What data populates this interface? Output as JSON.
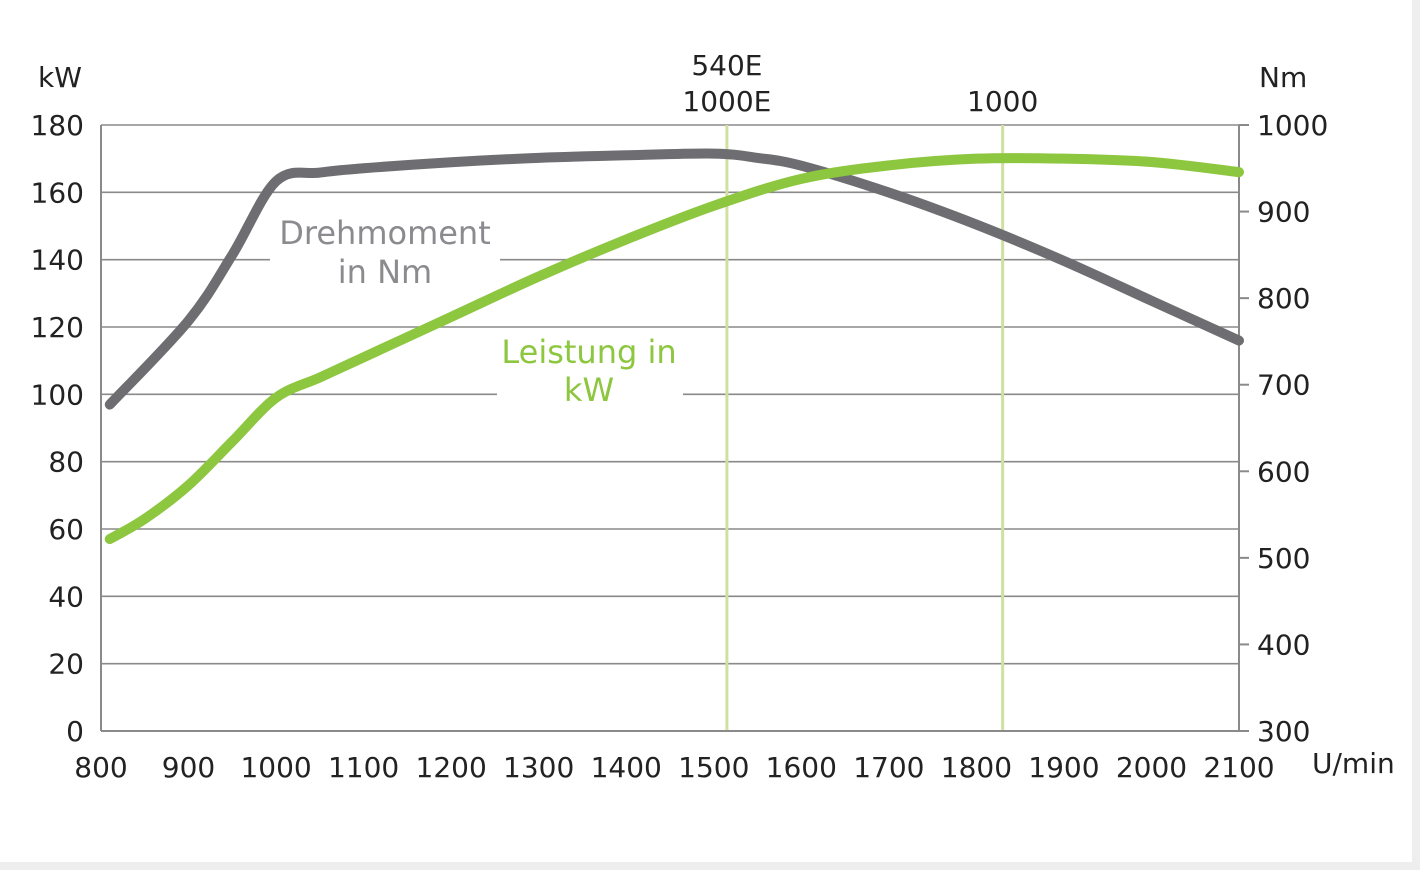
{
  "chart_data": {
    "type": "line",
    "x_axis": {
      "unit": "U/min",
      "min": 800,
      "max": 2100,
      "ticks": [
        800,
        900,
        1000,
        1100,
        1200,
        1300,
        1400,
        1500,
        1600,
        1700,
        1800,
        1900,
        2000,
        2100
      ]
    },
    "y_left": {
      "unit": "kW",
      "min": 0,
      "max": 180,
      "ticks": [
        0,
        20,
        40,
        60,
        80,
        100,
        120,
        140,
        160,
        180
      ]
    },
    "y_right": {
      "unit": "Nm",
      "min": 300,
      "max": 1000,
      "ticks": [
        300,
        400,
        500,
        600,
        700,
        800,
        900,
        1000
      ]
    },
    "grid": true,
    "markers": [
      {
        "x": 1515,
        "label_lines": [
          "540E",
          "1000E"
        ]
      },
      {
        "x": 1830,
        "label_lines": [
          "1000"
        ]
      }
    ],
    "series": [
      {
        "name": "Drehmoment in Nm",
        "label_lines": [
          "Drehmoment",
          "in Nm"
        ],
        "axis": "right",
        "color": "#6e6e72",
        "points": [
          [
            810,
            677
          ],
          [
            900,
            774
          ],
          [
            950,
            850
          ],
          [
            1000,
            935
          ],
          [
            1050,
            945
          ],
          [
            1100,
            950
          ],
          [
            1200,
            957
          ],
          [
            1300,
            962
          ],
          [
            1400,
            965
          ],
          [
            1500,
            967
          ],
          [
            1550,
            962
          ],
          [
            1600,
            953
          ],
          [
            1700,
            922
          ],
          [
            1800,
            885
          ],
          [
            1900,
            843
          ],
          [
            2000,
            797
          ],
          [
            2100,
            751
          ]
        ]
      },
      {
        "name": "Leistung in kW",
        "label_lines": [
          "Leistung in",
          "kW"
        ],
        "axis": "left",
        "color": "#8dc63f",
        "points": [
          [
            810,
            57
          ],
          [
            850,
            63
          ],
          [
            900,
            73
          ],
          [
            950,
            86
          ],
          [
            1000,
            99
          ],
          [
            1050,
            105
          ],
          [
            1100,
            111
          ],
          [
            1200,
            123
          ],
          [
            1300,
            135
          ],
          [
            1400,
            146
          ],
          [
            1500,
            156
          ],
          [
            1600,
            164
          ],
          [
            1700,
            168
          ],
          [
            1800,
            170
          ],
          [
            1900,
            170
          ],
          [
            2000,
            169
          ],
          [
            2100,
            166
          ]
        ]
      }
    ]
  }
}
